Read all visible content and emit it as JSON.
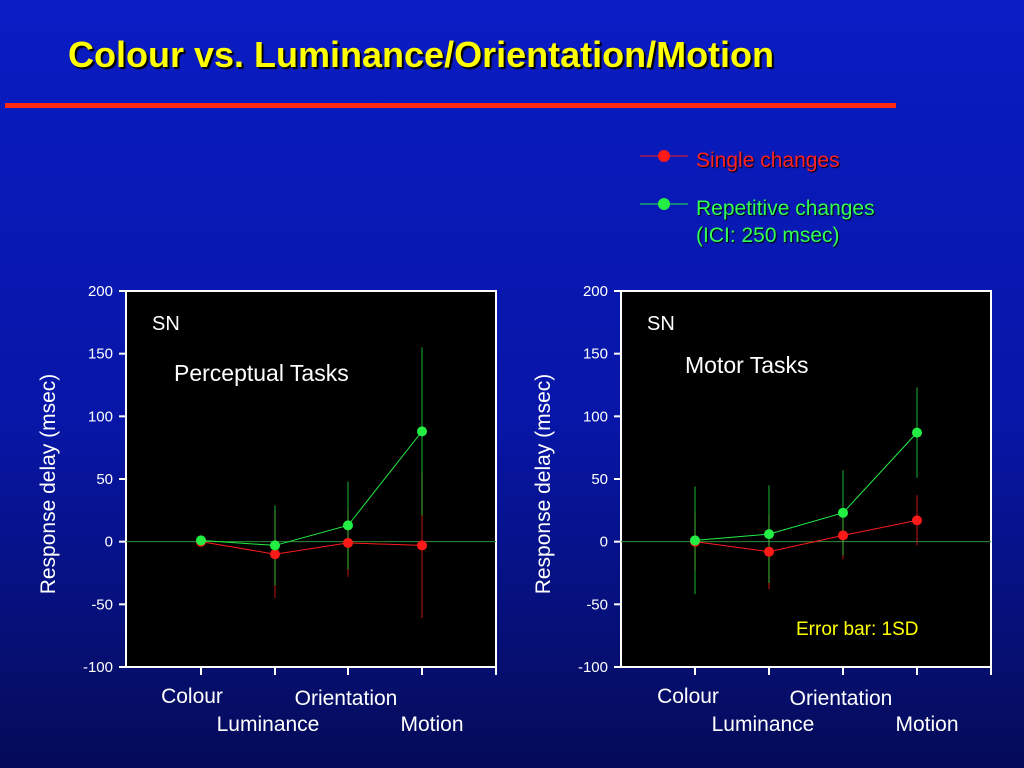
{
  "title": "Colour vs. Luminance/Orientation/Motion",
  "legend": {
    "single_label": "Single changes",
    "repetitive_line1": "Repetitive changes",
    "repetitive_line2": "(ICI: 250 msec)"
  },
  "colors": {
    "title": "#ffff00",
    "rule": "#ff2a10",
    "single": "#ff1a1a",
    "repetitive": "#22ee44",
    "error_note": "#ffff00"
  },
  "chart_data": [
    {
      "type": "line",
      "panel_label": "SN",
      "title": "Perceptual Tasks",
      "xlabel": "",
      "ylabel": "Response delay (msec)",
      "ylim": [
        -100,
        200
      ],
      "yticks": [
        200,
        150,
        100,
        50,
        0,
        -50,
        -100
      ],
      "categories": [
        "Colour",
        "Luminance",
        "Orientation",
        "Motion"
      ],
      "grid": false,
      "series": [
        {
          "name": "Single changes",
          "color": "#ff1a1a",
          "values": [
            0,
            -10,
            -1,
            -3
          ],
          "sd": [
            0,
            35,
            27,
            58
          ]
        },
        {
          "name": "Repetitive changes (ICI: 250 msec)",
          "color": "#22ee44",
          "values": [
            1,
            -3,
            13,
            88
          ],
          "sd": [
            0,
            32,
            35,
            67
          ]
        }
      ],
      "annotation": ""
    },
    {
      "type": "line",
      "panel_label": "SN",
      "title": "Motor Tasks",
      "xlabel": "",
      "ylabel": "Response delay (msec)",
      "ylim": [
        -100,
        200
      ],
      "yticks": [
        200,
        150,
        100,
        50,
        0,
        -50,
        -100
      ],
      "categories": [
        "Colour",
        "Luminance",
        "Orientation",
        "Motion"
      ],
      "grid": false,
      "series": [
        {
          "name": "Single changes",
          "color": "#ff1a1a",
          "values": [
            0,
            -8,
            5,
            17
          ],
          "sd": [
            23,
            30,
            19,
            20
          ]
        },
        {
          "name": "Repetitive changes (ICI: 250 msec)",
          "color": "#22ee44",
          "values": [
            1,
            6,
            23,
            87
          ],
          "sd": [
            43,
            39,
            34,
            36
          ]
        }
      ],
      "annotation": "Error bar: 1SD"
    }
  ]
}
